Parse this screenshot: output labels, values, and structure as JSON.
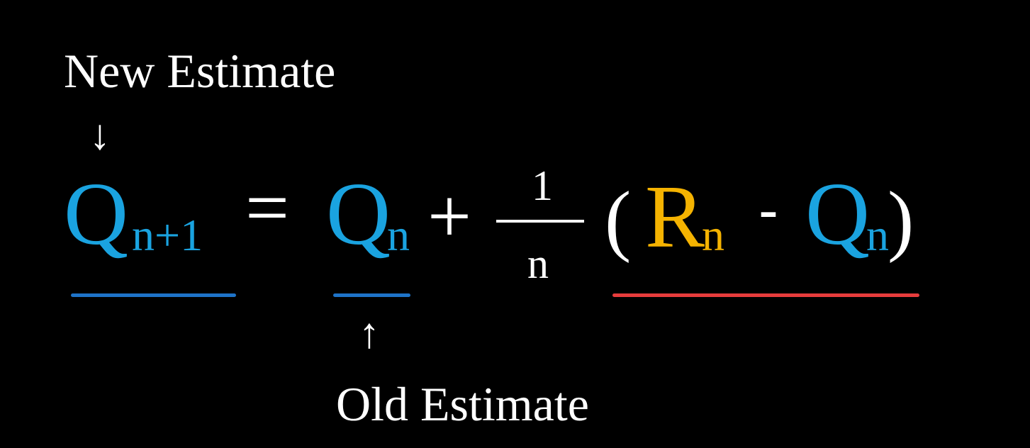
{
  "colors": {
    "background": "#000000",
    "text": "#ffffff",
    "q_symbol": "#1aa3e0",
    "r_symbol": "#f5b301",
    "underline_blue": "#1e73c8",
    "underline_red": "#e63c3c"
  },
  "labels": {
    "new_estimate": "New Estimate",
    "old_estimate": "Old Estimate",
    "arrow_down": "↓",
    "arrow_up": "↑"
  },
  "equation": {
    "lhs_symbol": "Q",
    "lhs_subscript": "n+1",
    "equals": "=",
    "old_symbol": "Q",
    "old_subscript": "n",
    "plus": "+",
    "frac_numerator": "1",
    "frac_denominator": "n",
    "open_paren": "(",
    "reward_symbol": "R",
    "reward_subscript": "n",
    "minus": "-",
    "err_q_symbol": "Q",
    "err_q_subscript": "n",
    "close_paren": ")"
  }
}
